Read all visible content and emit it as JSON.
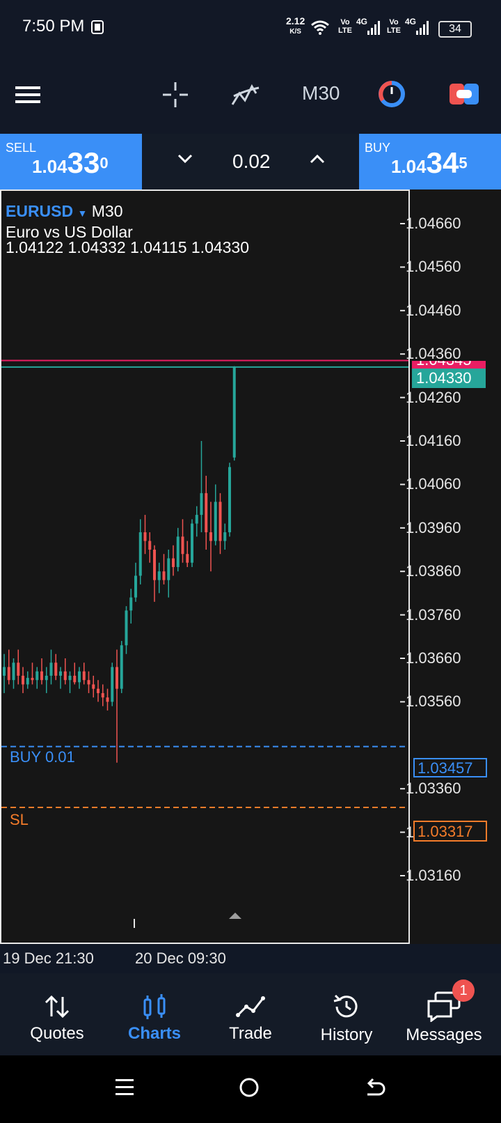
{
  "status": {
    "time": "7:50 PM",
    "net_speed": "2.12",
    "net_unit": "K/S",
    "sim1": "Vo LTE",
    "sim2": "Vo LTE",
    "g1": "4G",
    "g2": "4G",
    "battery": "34"
  },
  "toolbar": {
    "timeframe": "M30"
  },
  "trade": {
    "sell_label": "SELL",
    "sell_small": "1.04",
    "sell_big": "33",
    "sell_sup": "0",
    "buy_label": "BUY",
    "buy_small": "1.04",
    "buy_big": "34",
    "buy_sup": "5",
    "volume": "0.02"
  },
  "chart": {
    "symbol": "EURUSD",
    "timeframe": "M30",
    "description": "Euro vs US Dollar",
    "ohlc": "1.04122 1.04332 1.04115 1.04330",
    "axis_labels": [
      "1.04660",
      "1.04560",
      "1.04460",
      "1.04360",
      "1.04260",
      "1.04160",
      "1.04060",
      "1.03960",
      "1.03860",
      "1.03760",
      "1.03660",
      "1.03560",
      "1.03360",
      "1.03260",
      "1.03160"
    ],
    "ask_price": "1.04345",
    "bid_price": "1.04330",
    "order_label": "BUY 0.01",
    "order_price": "1.03457",
    "sl_label": "SL",
    "sl_price": "1.03317",
    "time_labels": [
      "19 Dec 21:30",
      "20 Dec 09:30"
    ],
    "colors": {
      "up": "#26a69a",
      "down": "#ef5350",
      "ask": "#e91e63",
      "bid": "#26a69a",
      "order": "#3a8ff7",
      "sl": "#f57c2a"
    }
  },
  "chart_data": {
    "type": "candlestick",
    "symbol": "EURUSD",
    "timeframe": "M30",
    "ylim": [
      1.031,
      1.047
    ],
    "candles": [
      [
        1.0362,
        1.0367,
        1.0358,
        1.0364
      ],
      [
        1.0364,
        1.0368,
        1.036,
        1.0361
      ],
      [
        1.0361,
        1.0366,
        1.0359,
        1.0365
      ],
      [
        1.0365,
        1.0368,
        1.036,
        1.0362
      ],
      [
        1.0362,
        1.0364,
        1.0358,
        1.036
      ],
      [
        1.036,
        1.0363,
        1.0359,
        1.03615
      ],
      [
        1.03615,
        1.0365,
        1.036,
        1.0361
      ],
      [
        1.0361,
        1.0364,
        1.0359,
        1.0363
      ],
      [
        1.0363,
        1.0366,
        1.036,
        1.0361
      ],
      [
        1.0361,
        1.0364,
        1.0358,
        1.0362
      ],
      [
        1.0362,
        1.0368,
        1.036,
        1.0365
      ],
      [
        1.0365,
        1.0367,
        1.0361,
        1.0362
      ],
      [
        1.0362,
        1.0364,
        1.0359,
        1.0363
      ],
      [
        1.0363,
        1.0366,
        1.036,
        1.0361
      ],
      [
        1.0361,
        1.0363,
        1.0358,
        1.0362
      ],
      [
        1.0362,
        1.0365,
        1.036,
        1.03605
      ],
      [
        1.03605,
        1.0364,
        1.0359,
        1.0363
      ],
      [
        1.0363,
        1.0365,
        1.036,
        1.0361
      ],
      [
        1.0361,
        1.0363,
        1.0358,
        1.036
      ],
      [
        1.036,
        1.0362,
        1.0357,
        1.0359
      ],
      [
        1.0359,
        1.0361,
        1.0356,
        1.0358
      ],
      [
        1.0358,
        1.036,
        1.0355,
        1.0357
      ],
      [
        1.0357,
        1.0359,
        1.0354,
        1.0356
      ],
      [
        1.0356,
        1.0365,
        1.0355,
        1.0364
      ],
      [
        1.0364,
        1.0368,
        1.0342,
        1.0359
      ],
      [
        1.0359,
        1.037,
        1.0358,
        1.0369
      ],
      [
        1.0369,
        1.0378,
        1.0367,
        1.0377
      ],
      [
        1.0377,
        1.0382,
        1.0374,
        1.038
      ],
      [
        1.038,
        1.0388,
        1.0379,
        1.0385
      ],
      [
        1.0385,
        1.0398,
        1.0383,
        1.0395
      ],
      [
        1.0395,
        1.0399,
        1.039,
        1.0393
      ],
      [
        1.0393,
        1.0395,
        1.0388,
        1.0391
      ],
      [
        1.0391,
        1.0392,
        1.0379,
        1.0384
      ],
      [
        1.0384,
        1.0388,
        1.0381,
        1.0386
      ],
      [
        1.0386,
        1.039,
        1.0383,
        1.0384
      ],
      [
        1.0384,
        1.0391,
        1.038,
        1.0389
      ],
      [
        1.0389,
        1.0392,
        1.0385,
        1.0387
      ],
      [
        1.0387,
        1.0396,
        1.0386,
        1.0394
      ],
      [
        1.0394,
        1.0398,
        1.0388,
        1.039
      ],
      [
        1.039,
        1.0393,
        1.0387,
        1.0388
      ],
      [
        1.0388,
        1.0398,
        1.0387,
        1.0397
      ],
      [
        1.0397,
        1.0401,
        1.0394,
        1.0399
      ],
      [
        1.0399,
        1.0416,
        1.0395,
        1.0404
      ],
      [
        1.0404,
        1.0408,
        1.0391,
        1.0395
      ],
      [
        1.0395,
        1.0402,
        1.0386,
        1.0393
      ],
      [
        1.0393,
        1.0406,
        1.0392,
        1.0402
      ],
      [
        1.0402,
        1.0404,
        1.039,
        1.0393
      ],
      [
        1.0393,
        1.0397,
        1.0391,
        1.0395
      ],
      [
        1.0395,
        1.0411,
        1.0394,
        1.041
      ],
      [
        1.04122,
        1.04332,
        1.04115,
        1.0433
      ]
    ]
  }
}
